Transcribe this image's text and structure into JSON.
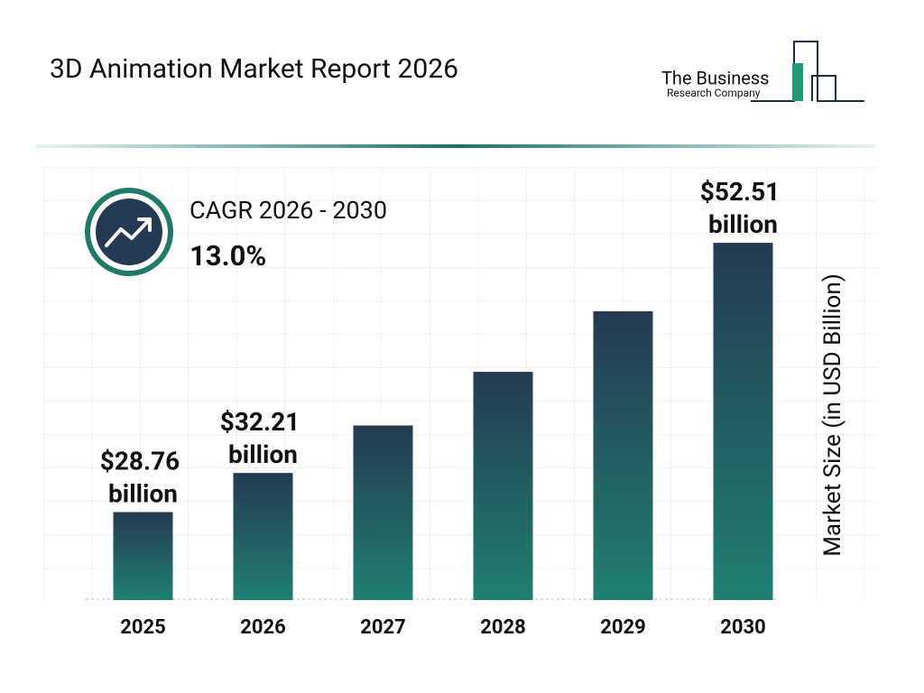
{
  "brand": {
    "line1": "The Business",
    "line2": "Research Company"
  },
  "chart_data": {
    "type": "bar",
    "title": "3D Animation Market Report 2026",
    "cagr_label": "CAGR 2026 - 2030",
    "cagr_value": "13.0%",
    "y_label": "Market Size (in USD Billion)",
    "categories": [
      "2025",
      "2026",
      "2027",
      "2028",
      "2029",
      "2030"
    ],
    "values": [
      28.76,
      32.21,
      36.4,
      41.13,
      46.47,
      52.51
    ],
    "value_labels": [
      "$28.76 billion",
      "$32.21 billion",
      null,
      null,
      null,
      "$52.51 billion"
    ],
    "color": [
      "#243a52",
      "#1f8070"
    ],
    "ylim": [
      21,
      60
    ],
    "grid": true
  }
}
